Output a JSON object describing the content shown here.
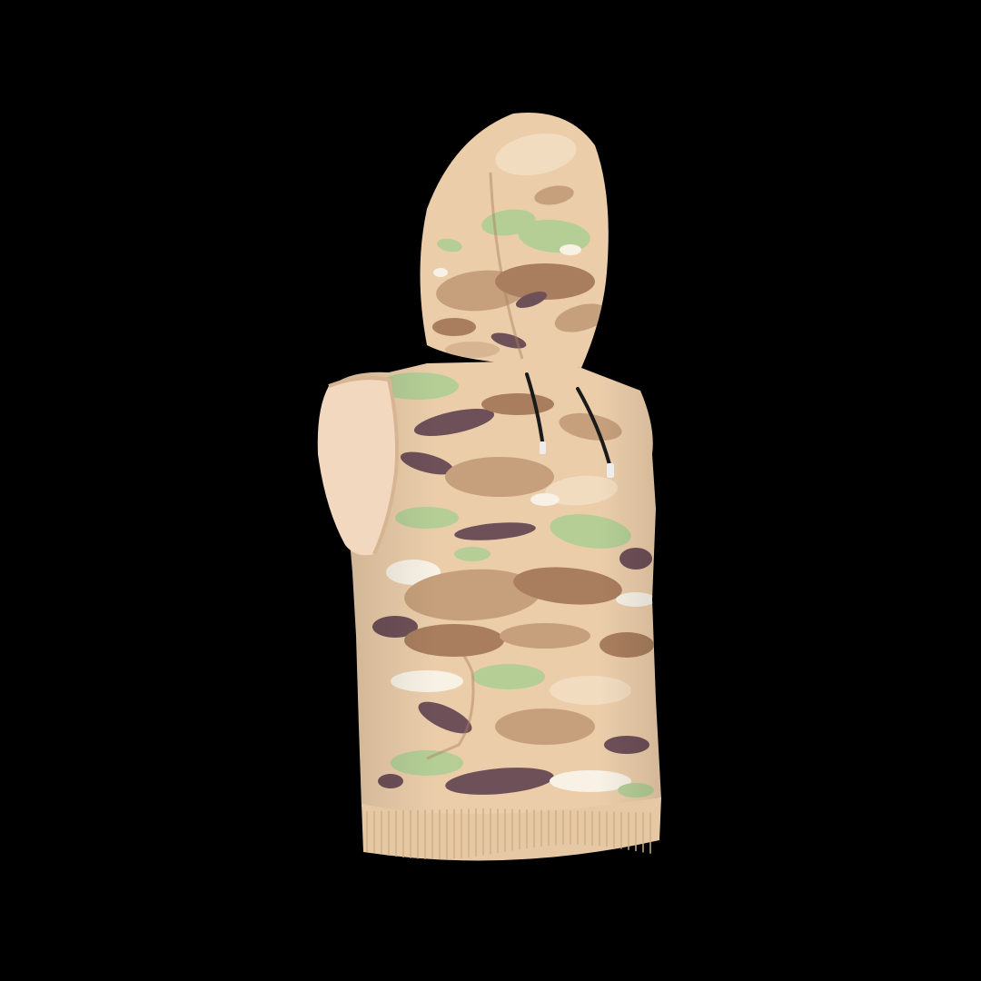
{
  "scene": {
    "subject": "sleeveless-hoodie",
    "background_color": "#000000",
    "colors": {
      "base": "#EBCDAA",
      "base_light": "#F2DCC0",
      "base_shadow": "#D7B592",
      "tan": "#C6A07C",
      "brown": "#A97E5E",
      "green": "#B5CE96",
      "plum": "#6E5058",
      "cream": "#F8F1E6",
      "armhole_lining": "#F1D8BE",
      "drawstring": "#1A1A1A",
      "aglet": "#EDEDED",
      "rib": "#E6C9A4",
      "rib_line": "#CFAE86"
    },
    "features": [
      "hood",
      "drawstrings",
      "kangaroo-pocket",
      "ribbed-hem",
      "armholes",
      "camouflage-print"
    ]
  }
}
